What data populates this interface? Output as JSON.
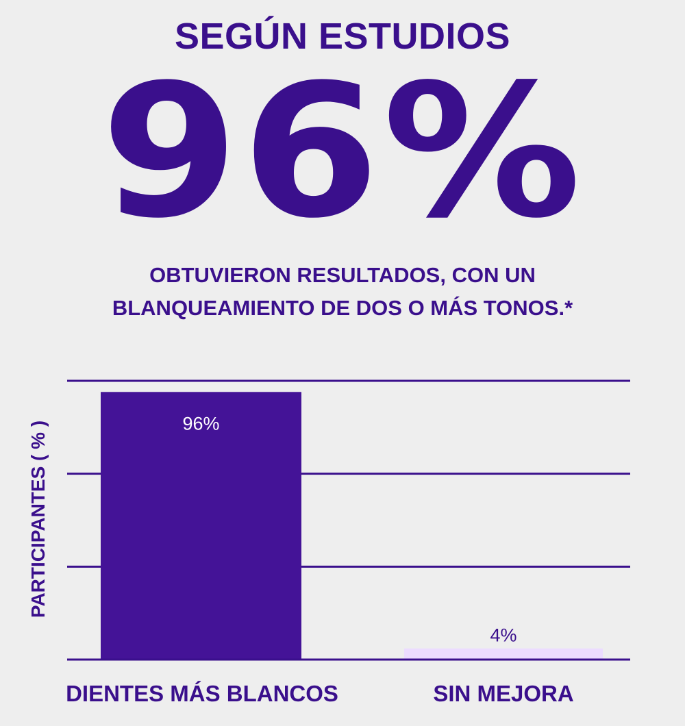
{
  "heading": "SEGÚN ESTUDIOS",
  "big_stat": "96%",
  "subtitle_lines": [
    "OBTUVIERON RESULTADOS, CON UN",
    "BLANQUEAMIENTO DE DOS O MÁS TONOS.*"
  ],
  "colors": {
    "primary": "#3a0f8c",
    "bar_main": "#441397",
    "bar_light": "#ecdcff",
    "background": "#eeeeee",
    "label_on_dark": "#ffffff"
  },
  "chart_data": {
    "type": "bar",
    "categories": [
      "DIENTES MÁS BLANCOS",
      "SIN MEJORA"
    ],
    "values": [
      96,
      4
    ],
    "data_labels": [
      "96%",
      "4%"
    ],
    "ylabel": "PARTICIPANTES ( % )",
    "ylim": [
      0,
      100
    ],
    "grid": true
  }
}
